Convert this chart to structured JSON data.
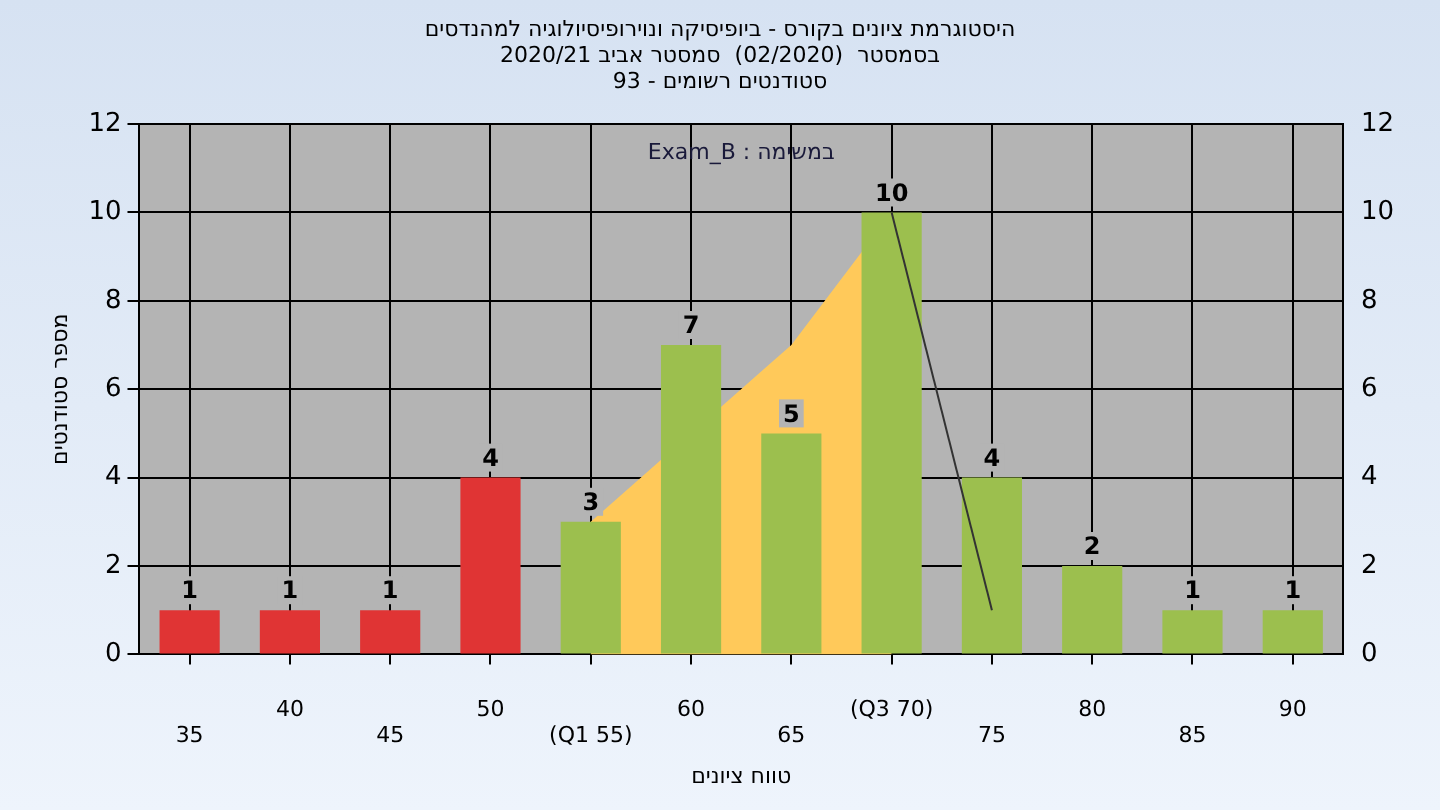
{
  "chart_data": {
    "type": "bar",
    "title": "היסטוגרמת ציונים בקורס - ביופיסיקה ונוירופיסיולוגיה למהנדסים",
    "subtitle": "בסמסטר  (02/2020)  סמסטר אביב 2020/21\nסטודנטים רשומים - 93",
    "xlabel": "טווח ציונים",
    "ylabel": "מספר סטודנטים",
    "annotations": [
      "במשימה : Exam_B"
    ],
    "categories": [
      "35",
      "40",
      "45",
      "50",
      "(Q1 55)",
      "60",
      "65",
      "(Q3 70)",
      "75",
      "80",
      "85",
      "90"
    ],
    "series": [
      {
        "values": [
          1,
          1,
          1,
          4,
          3,
          7,
          5,
          10,
          4,
          2,
          1,
          1
        ],
        "value_labels": [
          "1",
          "1",
          "1",
          "4",
          "3",
          "7",
          "5",
          "10",
          "4",
          "2",
          "1",
          "1"
        ],
        "colors": [
          "#e03434",
          "#e03434",
          "#e03434",
          "#e03434",
          "#9cbf4e",
          "#9cbf4e",
          "#9cbf4e",
          "#9cbf4e",
          "#9cbf4e",
          "#9cbf4e",
          "#9cbf4e",
          "#9cbf4e"
        ]
      },
      {
        "type": "area",
        "color": "#ffc95a",
        "values": [
          null,
          null,
          null,
          null,
          3,
          null,
          7,
          10,
          null,
          null,
          null,
          null
        ]
      },
      {
        "type": "line",
        "color": "#333333",
        "values": [
          null,
          null,
          null,
          null,
          null,
          null,
          null,
          10,
          1,
          null,
          null,
          null
        ]
      }
    ],
    "ylim": [
      0,
      12
    ],
    "yticks": [
      0,
      2,
      4,
      6,
      8,
      10,
      12
    ],
    "y2lim": [
      0,
      12
    ],
    "y2ticks": [
      0,
      2,
      4,
      6,
      8,
      10,
      12
    ],
    "grid": true
  }
}
